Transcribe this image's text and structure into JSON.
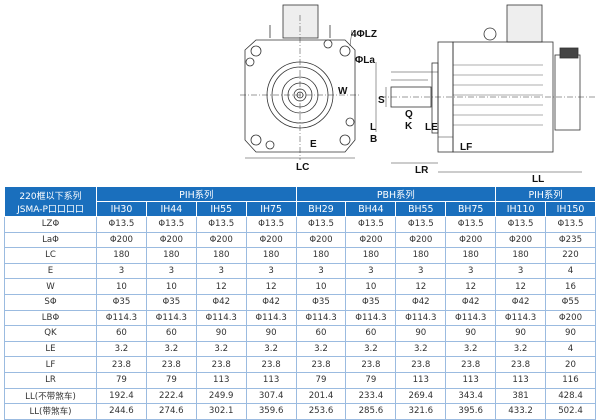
{
  "drawing": {
    "labels": {
      "lz": "4ΦLZ",
      "la": "ΦLa",
      "w": "W",
      "e": "E",
      "lc": "LC",
      "s": "S",
      "q": "Q",
      "l": "L",
      "k": "K",
      "b": "B",
      "le": "LE",
      "lf": "LF",
      "lr": "LR",
      "ll": "LL"
    }
  },
  "table": {
    "corner": [
      "220框以下系列",
      "JSMA-P口口口口"
    ],
    "groups": [
      {
        "label": "PIH系列",
        "span": 4
      },
      {
        "label": "PBH系列",
        "span": 4
      },
      {
        "label": "PIH系列",
        "span": 2
      }
    ],
    "models": [
      "IH30",
      "IH44",
      "IH55",
      "IH75",
      "BH29",
      "BH44",
      "BH55",
      "BH75",
      "IH110",
      "IH150"
    ],
    "rows": [
      {
        "label": "LZΦ",
        "values": [
          "Φ13.5",
          "Φ13.5",
          "Φ13.5",
          "Φ13.5",
          "Φ13.5",
          "Φ13.5",
          "Φ13.5",
          "Φ13.5",
          "Φ13.5",
          "Φ13.5"
        ]
      },
      {
        "label": "LaΦ",
        "values": [
          "Φ200",
          "Φ200",
          "Φ200",
          "Φ200",
          "Φ200",
          "Φ200",
          "Φ200",
          "Φ200",
          "Φ200",
          "Φ235"
        ]
      },
      {
        "label": "LC",
        "values": [
          "180",
          "180",
          "180",
          "180",
          "180",
          "180",
          "180",
          "180",
          "180",
          "220"
        ]
      },
      {
        "label": "E",
        "values": [
          "3",
          "3",
          "3",
          "3",
          "3",
          "3",
          "3",
          "3",
          "3",
          "4"
        ]
      },
      {
        "label": "W",
        "values": [
          "10",
          "10",
          "12",
          "12",
          "10",
          "10",
          "12",
          "12",
          "12",
          "16"
        ]
      },
      {
        "label": "SΦ",
        "values": [
          "Φ35",
          "Φ35",
          "Φ42",
          "Φ42",
          "Φ35",
          "Φ35",
          "Φ42",
          "Φ42",
          "Φ42",
          "Φ55"
        ]
      },
      {
        "label": "LBΦ",
        "values": [
          "Φ114.3",
          "Φ114.3",
          "Φ114.3",
          "Φ114.3",
          "Φ114.3",
          "Φ114.3",
          "Φ114.3",
          "Φ114.3",
          "Φ114.3",
          "Φ200"
        ]
      },
      {
        "label": "QK",
        "values": [
          "60",
          "60",
          "90",
          "90",
          "60",
          "60",
          "90",
          "90",
          "90",
          "90"
        ]
      },
      {
        "label": "LE",
        "values": [
          "3.2",
          "3.2",
          "3.2",
          "3.2",
          "3.2",
          "3.2",
          "3.2",
          "3.2",
          "3.2",
          "4"
        ]
      },
      {
        "label": "LF",
        "values": [
          "23.8",
          "23.8",
          "23.8",
          "23.8",
          "23.8",
          "23.8",
          "23.8",
          "23.8",
          "23.8",
          "20"
        ]
      },
      {
        "label": "LR",
        "values": [
          "79",
          "79",
          "113",
          "113",
          "79",
          "79",
          "113",
          "113",
          "113",
          "116"
        ]
      },
      {
        "label": "LL(不带煞车)",
        "values": [
          "192.4",
          "222.4",
          "249.9",
          "307.4",
          "201.4",
          "233.4",
          "269.4",
          "343.4",
          "381",
          "428.4"
        ]
      },
      {
        "label": "LL(带煞车)",
        "values": [
          "244.6",
          "274.6",
          "302.1",
          "359.6",
          "253.6",
          "285.6",
          "321.6",
          "395.6",
          "433.2",
          "502.4"
        ]
      }
    ]
  },
  "colors": {
    "header": "#1a6fbd",
    "grid": "#9bbbe0"
  }
}
